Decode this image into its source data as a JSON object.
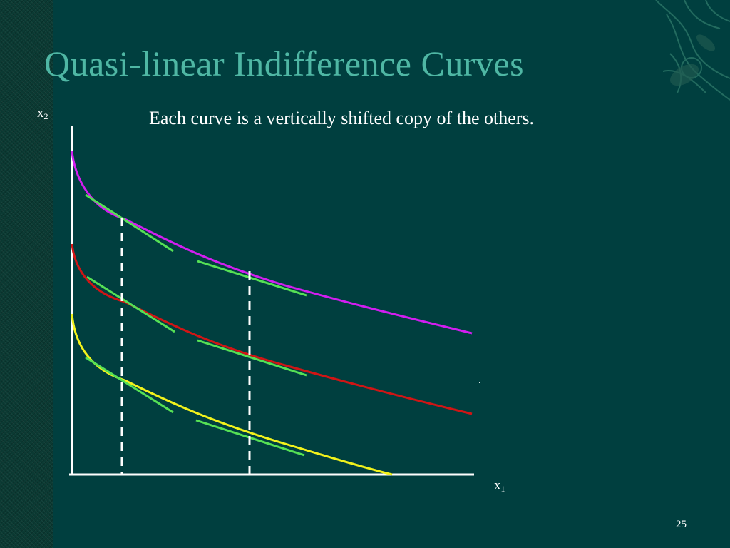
{
  "slide": {
    "title": "Quasi-linear Indifference Curves",
    "subtitle": "Each curve is a vertically shifted copy of the others.",
    "page_number": "25"
  },
  "axes": {
    "x_label": "x",
    "x_subscript": "1",
    "y_label": "x",
    "y_subscript": "2"
  },
  "colors": {
    "background": "#003f3f",
    "title": "#4fb7a4",
    "axis": "#ffffff",
    "tangent": "#55e055",
    "marker_line": "#ffffff"
  },
  "curves": [
    {
      "name": "top-curve",
      "color": "#d21ef0"
    },
    {
      "name": "middle-curve",
      "color": "#d01515"
    },
    {
      "name": "bottom-curve",
      "color": "#f2f21c"
    }
  ]
}
